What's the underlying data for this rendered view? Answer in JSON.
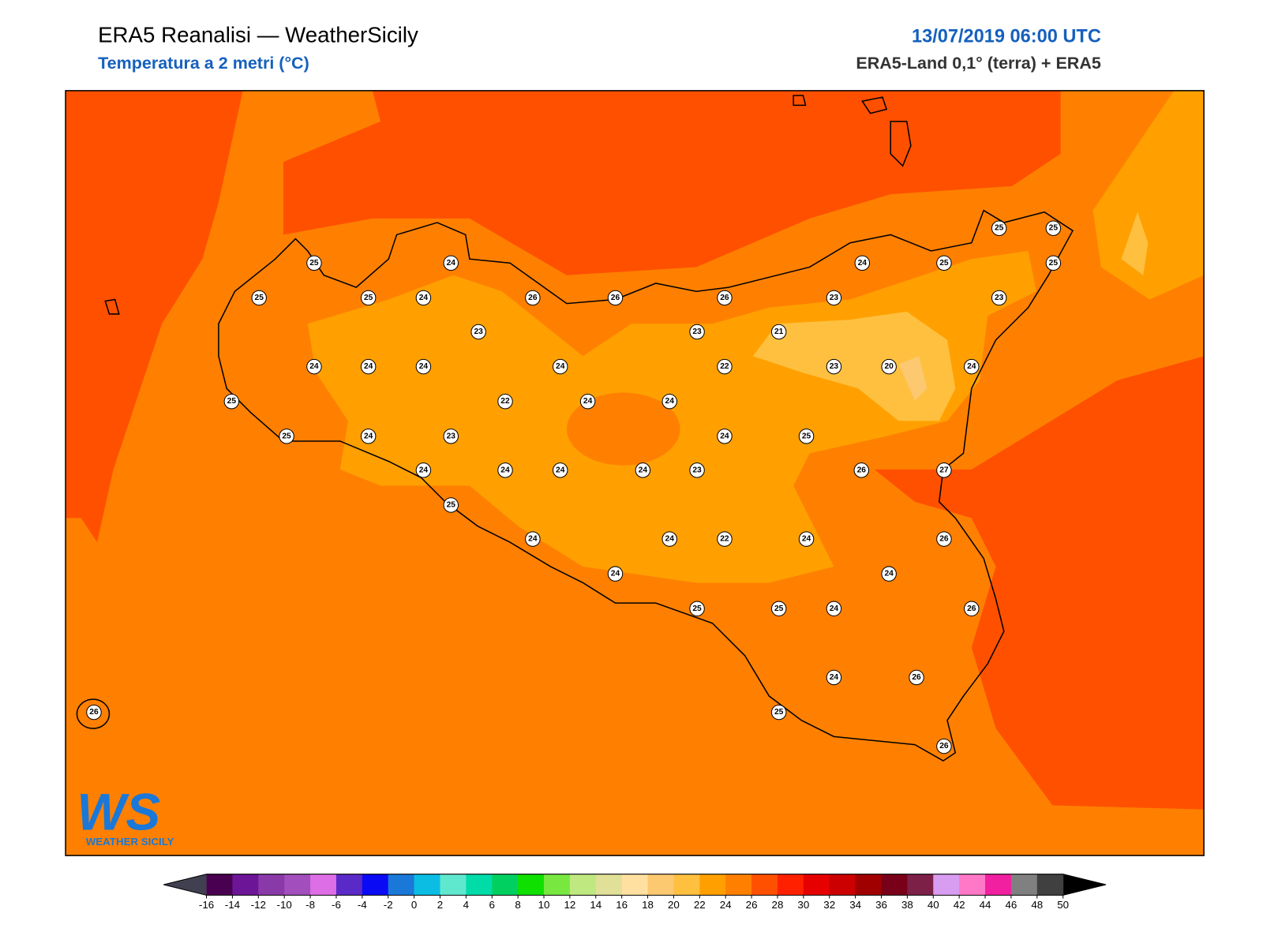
{
  "header": {
    "title": "ERA5 Reanalisi — WeatherSicily",
    "subtitle": "Temperatura a 2 metri (°C)",
    "datetime": "13/07/2019 06:00 UTC",
    "source": "ERA5-Land 0,1° (terra) + ERA5"
  },
  "logo": {
    "mark": "WS",
    "text": "WEATHER SICILY"
  },
  "stations": [
    25,
    24,
    25,
    25,
    24,
    26,
    26,
    26,
    23,
    24,
    25,
    25,
    25,
    25,
    23,
    23,
    23,
    21,
    24,
    24,
    24,
    24,
    22,
    23,
    20,
    24,
    25,
    22,
    24,
    24,
    25,
    24,
    23,
    24,
    25,
    24,
    24,
    24,
    24,
    23,
    26,
    27,
    25,
    24,
    24,
    22,
    24,
    26,
    24,
    24,
    25,
    25,
    24,
    26,
    24,
    26,
    25,
    26,
    26
  ],
  "colorbar": {
    "ticks": [
      -16,
      -14,
      -12,
      -10,
      -8,
      -6,
      -4,
      -2,
      0,
      2,
      4,
      6,
      8,
      10,
      12,
      14,
      16,
      18,
      20,
      22,
      24,
      26,
      28,
      30,
      32,
      34,
      36,
      38,
      40,
      42,
      44,
      46,
      48,
      50
    ],
    "colors": [
      "#4a0050",
      "#6d1597",
      "#8a3aa8",
      "#a24ebc",
      "#de6ee6",
      "#5a2ac8",
      "#0a0af5",
      "#1a78d8",
      "#0bbde3",
      "#60e8cf",
      "#00dca8",
      "#00d060",
      "#10e000",
      "#78e840",
      "#c0e880",
      "#e0e098",
      "#ffe0a0",
      "#fcc870",
      "#ffc040",
      "#ffa000",
      "#ff8000",
      "#ff5000",
      "#ff2000",
      "#e60000",
      "#cc0000",
      "#a00000",
      "#780018",
      "#7c2048",
      "#d89cf0",
      "#ff78c8",
      "#f020a0",
      "#808080",
      "#404040"
    ],
    "under_color": "#404050",
    "over_color": "#000000"
  }
}
